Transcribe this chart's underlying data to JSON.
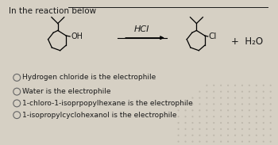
{
  "background_color": "#d6d0c4",
  "title_text": "In the reaction below",
  "reaction_label": "HCI",
  "options": [
    "Hydrogen chloride is the electrophile",
    "Water is the electrophile",
    "1-chloro-1-isoprpopylhexane is the electrophile",
    "1-isopropylcyclohexanol is the electrophile"
  ],
  "option_selected": [
    false,
    false,
    false,
    false
  ],
  "text_color": "#1a1a1a",
  "font_size_title": 7.5,
  "font_size_option": 6.5,
  "font_size_reaction": 8,
  "dot_color": "#bab4a8"
}
